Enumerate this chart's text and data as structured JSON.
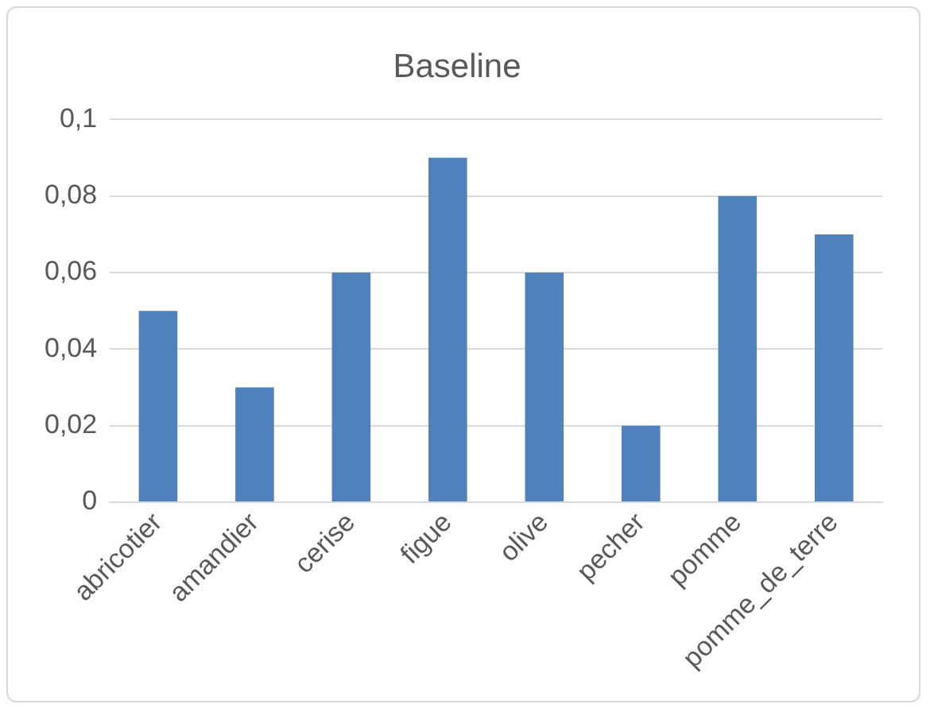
{
  "chart_data": {
    "type": "bar",
    "title": "Baseline",
    "categories": [
      "abricotier",
      "amandier",
      "cerise",
      "figue",
      "olive",
      "pecher",
      "pomme",
      "pomme_de_terre"
    ],
    "values": [
      0.05,
      0.03,
      0.06,
      0.09,
      0.06,
      0.02,
      0.08,
      0.07
    ],
    "color": "#4f81bd",
    "ylim": [
      0,
      0.1
    ],
    "yticks": [
      0,
      {
        "value": 0.02,
        "label": "0,02"
      },
      {
        "value": 0.04,
        "label": "0,04"
      },
      {
        "value": 0.06,
        "label": "0,06"
      },
      {
        "value": 0.08,
        "label": "0,08"
      },
      {
        "value": 0.1,
        "label": "0,1"
      }
    ],
    "grid": "y",
    "legend": false
  }
}
